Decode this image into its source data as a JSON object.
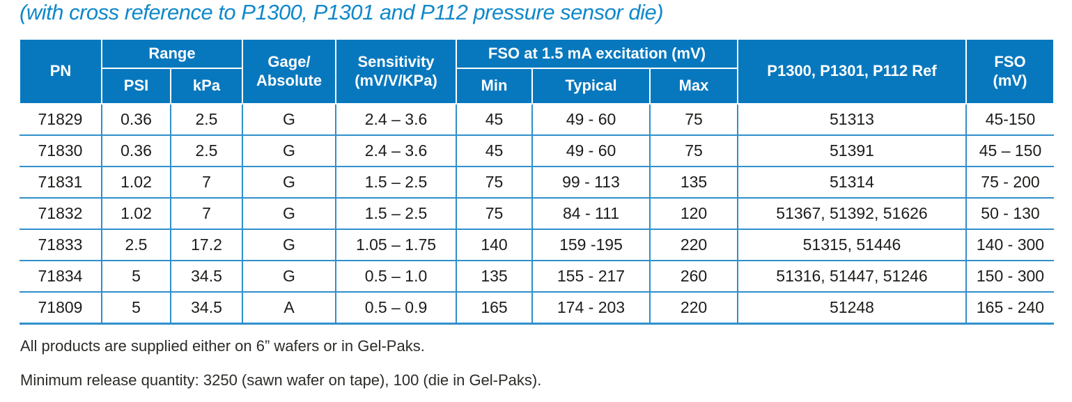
{
  "title": "(with cross reference to P1300, P1301 and P112 pressure sensor die)",
  "colors": {
    "header_bg": "#0878be",
    "grid_line": "#2f8fcc",
    "title_text": "#0f88ca",
    "body_text": "#1c1c1a"
  },
  "table": {
    "header": {
      "pn": "PN",
      "range": "Range",
      "psi": "PSI",
      "kpa": "kPa",
      "gage_line1": "Gage/",
      "gage_line2": "Absolute",
      "sensitivity_line1": "Sensitivity",
      "sensitivity_line2": "(mV/V/KPa)",
      "fso_excitation": "FSO at 1.5 mA excitation (mV)",
      "min": "Min",
      "typical": "Typical",
      "max": "Max",
      "ref": "P1300, P1301, P112 Ref",
      "fso_line1": "FSO",
      "fso_line2": "(mV)"
    },
    "rows": [
      [
        "71829",
        "0.36",
        "2.5",
        "G",
        "2.4 – 3.6",
        "45",
        "49 - 60",
        "75",
        "51313",
        "45-150"
      ],
      [
        "71830",
        "0.36",
        "2.5",
        "G",
        "2.4 – 3.6",
        "45",
        "49 - 60",
        "75",
        "51391",
        "45 – 150"
      ],
      [
        "71831",
        "1.02",
        "7",
        "G",
        "1.5 – 2.5",
        "75",
        "99 - 113",
        "135",
        "51314",
        "75 - 200"
      ],
      [
        "71832",
        "1.02",
        "7",
        "G",
        "1.5 – 2.5",
        "75",
        "84 - 111",
        "120",
        "51367, 51392, 51626",
        "50 - 130"
      ],
      [
        "71833",
        "2.5",
        "17.2",
        "G",
        "1.05 – 1.75",
        "140",
        "159 -195",
        "220",
        "51315, 51446",
        "140 - 300"
      ],
      [
        "71834",
        "5",
        "34.5",
        "G",
        "0.5 – 1.0",
        "135",
        "155 - 217",
        "260",
        "51316, 51447, 51246",
        "150 - 300"
      ],
      [
        "71809",
        "5",
        "34.5",
        "A",
        "0.5 – 0.9",
        "165",
        "174 - 203",
        "220",
        "51248",
        "165 - 240"
      ]
    ]
  },
  "notes": [
    "All products are supplied either on 6” wafers or in Gel-Paks.",
    "Minimum release quantity: 3250 (sawn wafer on tape), 100 (die in Gel-Paks)."
  ]
}
